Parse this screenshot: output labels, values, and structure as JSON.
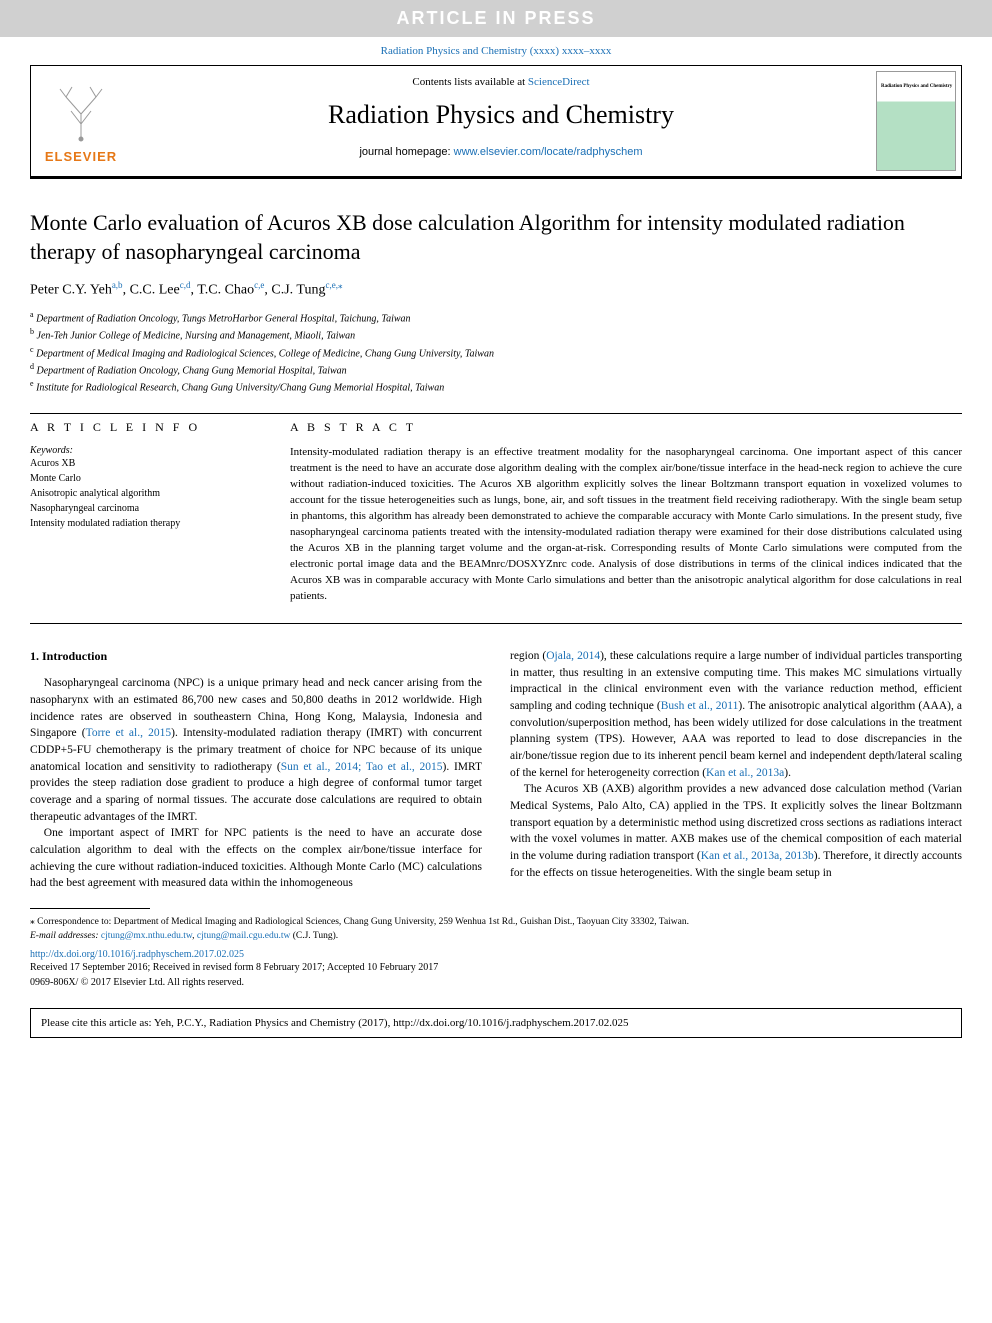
{
  "watermark": "ARTICLE IN PRESS",
  "journal_ref": "Radiation Physics and Chemistry (xxxx) xxxx–xxxx",
  "header": {
    "contents_prefix": "Contents lists available at ",
    "contents_link": "ScienceDirect",
    "journal_title": "Radiation Physics and Chemistry",
    "homepage_prefix": "journal homepage: ",
    "homepage_url": "www.elsevier.com/locate/radphyschem",
    "elsevier": "ELSEVIER",
    "cover_caption": "Radiation Physics and Chemistry"
  },
  "article": {
    "title": "Monte Carlo evaluation of Acuros XB dose calculation Algorithm for intensity modulated radiation therapy of nasopharyngeal carcinoma",
    "authors_html": "Peter C.Y. Yeh|a,b|, C.C. Lee|c,d|, T.C. Chao|c,e|, C.J. Tung|c,e,⁎|",
    "authors": [
      {
        "name": "Peter C.Y. Yeh",
        "sup": "a,b"
      },
      {
        "name": "C.C. Lee",
        "sup": "c,d"
      },
      {
        "name": "T.C. Chao",
        "sup": "c,e"
      },
      {
        "name": "C.J. Tung",
        "sup": "c,e,⁎"
      }
    ],
    "affiliations": [
      {
        "sup": "a",
        "text": "Department of Radiation Oncology, Tungs MetroHarbor General Hospital, Taichung, Taiwan"
      },
      {
        "sup": "b",
        "text": "Jen-Teh Junior College of Medicine, Nursing and Management, Miaoli, Taiwan"
      },
      {
        "sup": "c",
        "text": "Department of Medical Imaging and Radiological Sciences, College of Medicine, Chang Gung University, Taiwan"
      },
      {
        "sup": "d",
        "text": "Department of Radiation Oncology, Chang Gung Memorial Hospital, Taiwan"
      },
      {
        "sup": "e",
        "text": "Institute for Radiological Research, Chang Gung University/Chang Gung Memorial Hospital, Taiwan"
      }
    ]
  },
  "article_info": {
    "head": "A R T I C L E  I N F O",
    "keywords_label": "Keywords:",
    "keywords": [
      "Acuros XB",
      "Monte Carlo",
      "Anisotropic analytical algorithm",
      "Nasopharyngeal carcinoma",
      "Intensity modulated radiation therapy"
    ]
  },
  "abstract": {
    "head": "A B S T R A C T",
    "text": "Intensity-modulated radiation therapy is an effective treatment modality for the nasopharyngeal carcinoma. One important aspect of this cancer treatment is the need to have an accurate dose algorithm dealing with the complex air/bone/tissue interface in the head-neck region to achieve the cure without radiation-induced toxicities. The Acuros XB algorithm explicitly solves the linear Boltzmann transport equation in voxelized volumes to account for the tissue heterogeneities such as lungs, bone, air, and soft tissues in the treatment field receiving radiotherapy. With the single beam setup in phantoms, this algorithm has already been demonstrated to achieve the comparable accuracy with Monte Carlo simulations. In the present study, five nasopharyngeal carcinoma patients treated with the intensity-modulated radiation therapy were examined for their dose distributions calculated using the Acuros XB in the planning target volume and the organ-at-risk. Corresponding results of Monte Carlo simulations were computed from the electronic portal image data and the BEAMnrc/DOSXYZnrc code. Analysis of dose distributions in terms of the clinical indices indicated that the Acuros XB was in comparable accuracy with Monte Carlo simulations and better than the anisotropic analytical algorithm for dose calculations in real patients."
  },
  "body": {
    "section_head": "1.  Introduction",
    "p1a": "Nasopharyngeal carcinoma (NPC) is a unique primary head and neck cancer arising from the nasopharynx with an estimated 86,700 new cases and 50,800 deaths in 2012 worldwide. High incidence rates are observed in southeastern China, Hong Kong, Malaysia, Indonesia and Singapore (",
    "p1_ref1": "Torre et al., 2015",
    "p1b": "). Intensity-modulated radiation therapy (IMRT) with concurrent CDDP+5-FU chemotherapy is the primary treatment of choice for NPC because of its unique anatomical location and sensitivity to radiotherapy (",
    "p1_ref2": "Sun et al., 2014; Tao et al., 2015",
    "p1c": "). IMRT provides the steep radiation dose gradient to produce a high degree of conformal tumor target coverage and a sparing of normal tissues. The accurate dose calculations are required to obtain therapeutic advantages of the IMRT.",
    "p2": "One important aspect of IMRT for NPC patients is the need to have an accurate dose calculation algorithm to deal with the effects on the complex air/bone/tissue interface for achieving the cure without radiation-induced toxicities. Although Monte Carlo (MC) calculations had the best agreement with measured data within the inhomogeneous",
    "p3a": "region (",
    "p3_ref1": "Ojala, 2014",
    "p3b": "), these calculations require a large number of individual particles transporting in matter, thus resulting in an extensive computing time. This makes MC simulations virtually impractical in the clinical environment even with the variance reduction method, efficient sampling and coding technique (",
    "p3_ref2": "Bush et al., 2011",
    "p3c": "). The anisotropic analytical algorithm (AAA), a convolution/superposition method, has been widely utilized for dose calculations in the treatment planning system (TPS). However, AAA was reported to lead to dose discrepancies in the air/bone/tissue region due to its inherent pencil beam kernel and independent depth/lateral scaling of the kernel for heterogeneity correction (",
    "p3_ref3": "Kan et al., 2013a",
    "p3d": ").",
    "p4a": "The Acuros XB (AXB) algorithm provides a new advanced dose calculation method (Varian Medical Systems, Palo Alto, CA) applied in the TPS. It explicitly solves the linear Boltzmann transport equation by a deterministic method using discretized cross sections as radiations interact with the voxel volumes in matter. AXB makes use of the chemical composition of each material in the volume during radiation transport (",
    "p4_ref1": "Kan et al., 2013a, 2013b",
    "p4b": "). Therefore, it directly accounts for the effects on tissue heterogeneities. With the single beam setup in"
  },
  "footer": {
    "corr_marker": "⁎",
    "corr_text": " Correspondence to: Department of Medical Imaging and Radiological Sciences, Chang Gung University, 259 Wenhua 1st Rd., Guishan Dist., Taoyuan City 33302, Taiwan.",
    "email_label": "E-mail addresses: ",
    "email1": "cjtung@mx.nthu.edu.tw",
    "email_sep": ", ",
    "email2": "cjtung@mail.cgu.edu.tw",
    "email_author": " (C.J. Tung).",
    "doi": "http://dx.doi.org/10.1016/j.radphyschem.2017.02.025",
    "received": "Received 17 September 2016; Received in revised form 8 February 2017; Accepted 10 February 2017",
    "issn": "0969-806X/ © 2017 Elsevier Ltd. All rights reserved."
  },
  "citebox": "Please cite this article as: Yeh, P.C.Y., Radiation Physics and Chemistry (2017), http://dx.doi.org/10.1016/j.radphyschem.2017.02.025",
  "colors": {
    "link": "#1a6fb5",
    "elsevier_orange": "#e67817",
    "watermark_bg": "#d0d0d0"
  }
}
